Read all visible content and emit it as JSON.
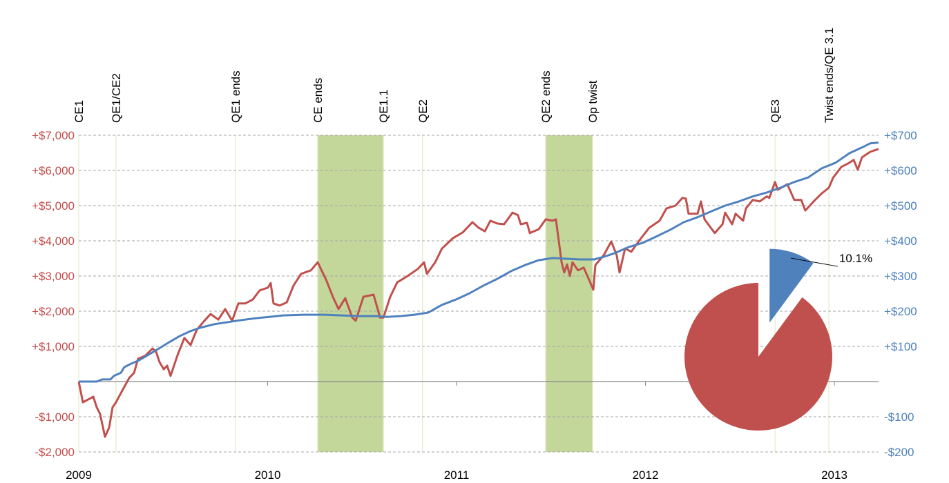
{
  "chart_data": [
    {
      "type": "line",
      "xlim": [
        2009,
        2013.234
      ],
      "xticks": [
        2009,
        2010,
        2011,
        2012,
        2013
      ],
      "ylim": [
        -2000,
        7000
      ],
      "yticks": [
        {
          "value": -2000,
          "label": "-$2,000"
        },
        {
          "value": -1000,
          "label": "-$1,000"
        },
        {
          "value": 0,
          "label": ""
        },
        {
          "value": 1000,
          "label": "+$1,000"
        },
        {
          "value": 2000,
          "label": "+$2,000"
        },
        {
          "value": 3000,
          "label": "+$3,000"
        },
        {
          "value": 4000,
          "label": "+$4,000"
        },
        {
          "value": 5000,
          "label": "+$5,000"
        },
        {
          "value": 6000,
          "label": "+$6,000"
        },
        {
          "value": 7000,
          "label": "+$7,000"
        }
      ],
      "y2lim": [
        -200,
        700
      ],
      "y2ticks": [
        {
          "value": -200,
          "label": "-$200"
        },
        {
          "value": -100,
          "label": "-$100"
        },
        {
          "value": 0,
          "label": ""
        },
        {
          "value": 100,
          "label": "+$100"
        },
        {
          "value": 200,
          "label": "+$200"
        },
        {
          "value": 300,
          "label": "+$300"
        },
        {
          "value": 400,
          "label": "+$400"
        },
        {
          "value": 500,
          "label": "+$500"
        },
        {
          "value": 600,
          "label": "+$600"
        },
        {
          "value": 700,
          "label": "+$700"
        }
      ],
      "grid": true,
      "events": [
        {
          "x": 2009.0,
          "label": "CE1"
        },
        {
          "x": 2009.197,
          "label": "QE1/CE2"
        },
        {
          "x": 2009.83,
          "label": "QE1 ends"
        },
        {
          "x": 2010.265,
          "label": "CE ends"
        },
        {
          "x": 2010.613,
          "label": "QE1.1"
        },
        {
          "x": 2010.82,
          "label": "QE2"
        },
        {
          "x": 2011.472,
          "label": "QE2 ends"
        },
        {
          "x": 2011.72,
          "label": "Op twist"
        },
        {
          "x": 2012.686,
          "label": "QE3"
        },
        {
          "x": 2012.971,
          "label": "Twist ends/QE 3.1"
        }
      ],
      "shaded": [
        [
          2010.265,
          2010.613
        ],
        [
          2011.472,
          2011.72
        ]
      ],
      "shade_color": "#c4d79b",
      "series": [
        {
          "color": "#c0504d",
          "axis": "y",
          "x": [
            2009.0,
            2009.022,
            2009.077,
            2009.095,
            2009.113,
            2009.139,
            2009.161,
            2009.179,
            2009.197,
            2009.223,
            2009.267,
            2009.293,
            2009.314,
            2009.351,
            2009.391,
            2009.41,
            2009.428,
            2009.45,
            2009.468,
            2009.486,
            2009.523,
            2009.559,
            2009.592,
            2009.625,
            2009.662,
            2009.698,
            2009.739,
            2009.775,
            2009.812,
            2009.845,
            2009.881,
            2009.921,
            2009.958,
            2010.002,
            2010.016,
            2010.031,
            2010.064,
            2010.101,
            2010.137,
            2010.177,
            2010.229,
            2010.265,
            2010.309,
            2010.345,
            2010.375,
            2010.411,
            2010.448,
            2010.466,
            2010.507,
            2010.561,
            2010.595,
            2010.613,
            2010.649,
            2010.686,
            2010.741,
            2010.795,
            2010.828,
            2010.843,
            2010.887,
            2010.923,
            2010.982,
            2011.033,
            2011.084,
            2011.117,
            2011.15,
            2011.179,
            2011.216,
            2011.252,
            2011.296,
            2011.325,
            2011.34,
            2011.373,
            2011.388,
            2011.435,
            2011.472,
            2011.508,
            2011.526,
            2011.556,
            2011.57,
            2011.585,
            2011.6,
            2011.614,
            2011.643,
            2011.673,
            2011.709,
            2011.724,
            2011.735,
            2011.779,
            2011.819,
            2011.848,
            2011.863,
            2011.892,
            2011.925,
            2011.969,
            2012.02,
            2012.075,
            2012.111,
            2012.159,
            2012.196,
            2012.214,
            2012.228,
            2012.276,
            2012.294,
            2012.313,
            2012.346,
            2012.367,
            2012.408,
            2012.422,
            2012.459,
            2012.477,
            2012.517,
            2012.532,
            2012.568,
            2012.605,
            2012.642,
            2012.656,
            2012.686,
            2012.7,
            2012.733,
            2012.751,
            2012.788,
            2012.825,
            2012.846,
            2012.898,
            2012.934,
            2012.971,
            2012.993,
            2013.037,
            2013.08,
            2013.102,
            2013.124,
            2013.146,
            2013.19,
            2013.234
          ],
          "values": [
            0,
            -590,
            -430,
            -730,
            -920,
            -1570,
            -1310,
            -730,
            -590,
            -330,
            100,
            250,
            650,
            730,
            940,
            840,
            550,
            350,
            450,
            160,
            750,
            1240,
            1040,
            1470,
            1710,
            1920,
            1760,
            2060,
            1730,
            2220,
            2220,
            2330,
            2590,
            2670,
            2800,
            2220,
            2160,
            2250,
            2730,
            3060,
            3160,
            3390,
            2900,
            2410,
            2060,
            2370,
            1820,
            1730,
            2410,
            2470,
            1820,
            1820,
            2410,
            2820,
            3000,
            3200,
            3390,
            3060,
            3390,
            3780,
            4080,
            4240,
            4530,
            4370,
            4270,
            4570,
            4490,
            4470,
            4800,
            4730,
            4470,
            4510,
            4220,
            4330,
            4610,
            4570,
            4610,
            3390,
            3100,
            3330,
            3000,
            3390,
            3160,
            3240,
            2800,
            2610,
            3310,
            3590,
            3980,
            3590,
            3100,
            3780,
            3690,
            4020,
            4370,
            4570,
            4920,
            5000,
            5220,
            5200,
            4770,
            4770,
            5120,
            4610,
            4370,
            4220,
            4470,
            4800,
            4470,
            4770,
            4570,
            4920,
            5160,
            5120,
            5260,
            5220,
            5670,
            5450,
            5550,
            5610,
            5160,
            5160,
            4860,
            5160,
            5350,
            5510,
            5790,
            6100,
            6220,
            6300,
            6020,
            6370,
            6530,
            6610
          ]
        },
        {
          "color": "#4f81bd",
          "axis": "y2",
          "x": [
            2009.0,
            2009.095,
            2009.124,
            2009.168,
            2009.186,
            2009.223,
            2009.241,
            2009.278,
            2009.314,
            2009.369,
            2009.424,
            2009.479,
            2009.534,
            2009.589,
            2009.643,
            2009.717,
            2009.79,
            2009.863,
            2009.936,
            2010.009,
            2010.082,
            2010.192,
            2010.302,
            2010.393,
            2010.484,
            2010.576,
            2010.631,
            2010.704,
            2010.777,
            2010.85,
            2010.923,
            2010.996,
            2011.069,
            2011.143,
            2011.216,
            2011.289,
            2011.362,
            2011.435,
            2011.508,
            2011.581,
            2011.654,
            2011.728,
            2011.782,
            2011.837,
            2011.91,
            2011.984,
            2012.057,
            2012.13,
            2012.203,
            2012.276,
            2012.349,
            2012.422,
            2012.495,
            2012.568,
            2012.642,
            2012.715,
            2012.788,
            2012.861,
            2012.934,
            2013.007,
            2013.08,
            2013.154,
            2013.19,
            2013.234
          ],
          "values": [
            0,
            0,
            6,
            6,
            16,
            25,
            41,
            51,
            59,
            76,
            94,
            112,
            129,
            143,
            153,
            163,
            169,
            175,
            180,
            184,
            188,
            190,
            190,
            188,
            186,
            186,
            184,
            186,
            190,
            196,
            218,
            233,
            251,
            273,
            292,
            314,
            331,
            345,
            351,
            349,
            347,
            347,
            355,
            365,
            382,
            394,
            412,
            431,
            453,
            467,
            484,
            500,
            512,
            526,
            537,
            551,
            567,
            580,
            606,
            622,
            649,
            667,
            677,
            679
          ]
        }
      ]
    },
    {
      "type": "pie",
      "values": [
        89.9,
        10.1
      ],
      "value_labels": [
        null,
        "10.1%"
      ],
      "colors": [
        "#c0504d",
        "#4f81bd"
      ]
    }
  ]
}
